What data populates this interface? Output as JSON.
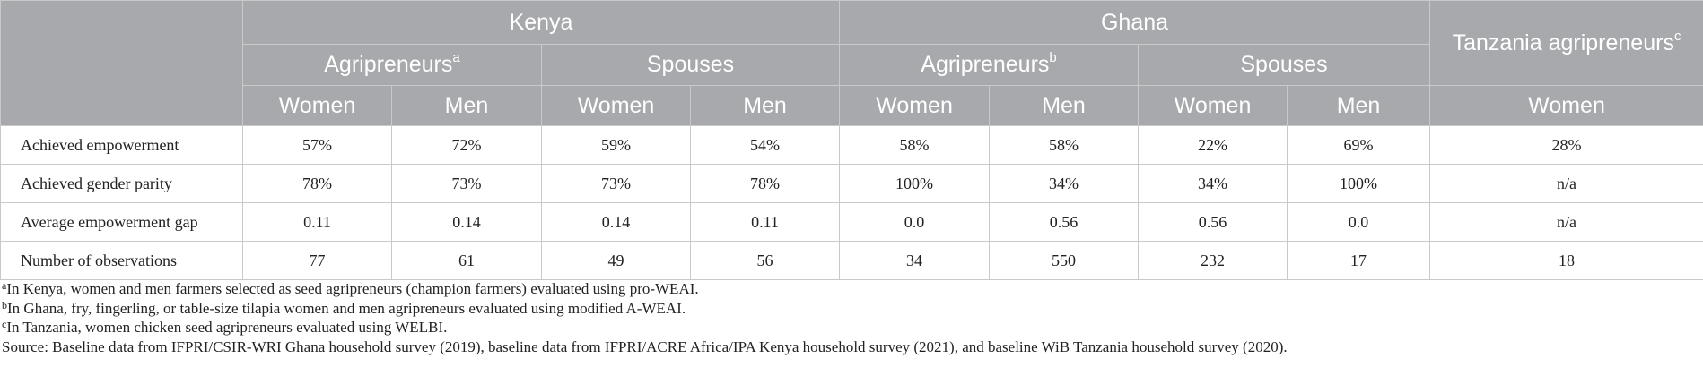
{
  "header": {
    "countries": {
      "kenya": "Kenya",
      "ghana": "Ghana",
      "tanzania": "Tanzania agripreneurs",
      "tanzania_sup": "c"
    },
    "groups": {
      "kenya_agri": "Agripreneurs",
      "kenya_agri_sup": "a",
      "kenya_spouses": "Spouses",
      "ghana_agri": "Agripreneurs",
      "ghana_agri_sup": "b",
      "ghana_spouses": "Spouses"
    },
    "sexes": [
      "Women",
      "Men",
      "Women",
      "Men",
      "Women",
      "Men",
      "Women",
      "Men",
      "Women"
    ]
  },
  "rows": [
    {
      "label": "Achieved empowerment",
      "values": [
        "57%",
        "72%",
        "59%",
        "54%",
        "58%",
        "58%",
        "22%",
        "69%",
        "28%"
      ]
    },
    {
      "label": "Achieved gender parity",
      "values": [
        "78%",
        "73%",
        "73%",
        "78%",
        "100%",
        "34%",
        "34%",
        "100%",
        "n/a"
      ]
    },
    {
      "label": "Average empowerment gap",
      "values": [
        "0.11",
        "0.14",
        "0.14",
        "0.11",
        "0.0",
        "0.56",
        "0.56",
        "0.0",
        "n/a"
      ]
    },
    {
      "label": "Number of observations",
      "values": [
        "77",
        "61",
        "49",
        "56",
        "34",
        "550",
        "232",
        "17",
        "18"
      ]
    }
  ],
  "footnotes": [
    {
      "marker": "a",
      "text": "In Kenya, women and men farmers selected as seed agripreneurs (champion farmers) evaluated using pro-WEAI."
    },
    {
      "marker": "b",
      "text": "In Ghana, fry, fingerling, or table-size tilapia women and men agripreneurs evaluated using modified A-WEAI."
    },
    {
      "marker": "c",
      "text": "In Tanzania, women chicken seed agripreneurs evaluated using WELBI."
    }
  ],
  "source": "Source: Baseline data from IFPRI/CSIR-WRI Ghana household survey (2019), baseline data from IFPRI/ACRE Africa/IPA Kenya household survey (2021), and baseline WiB Tanzania household survey (2020)."
}
